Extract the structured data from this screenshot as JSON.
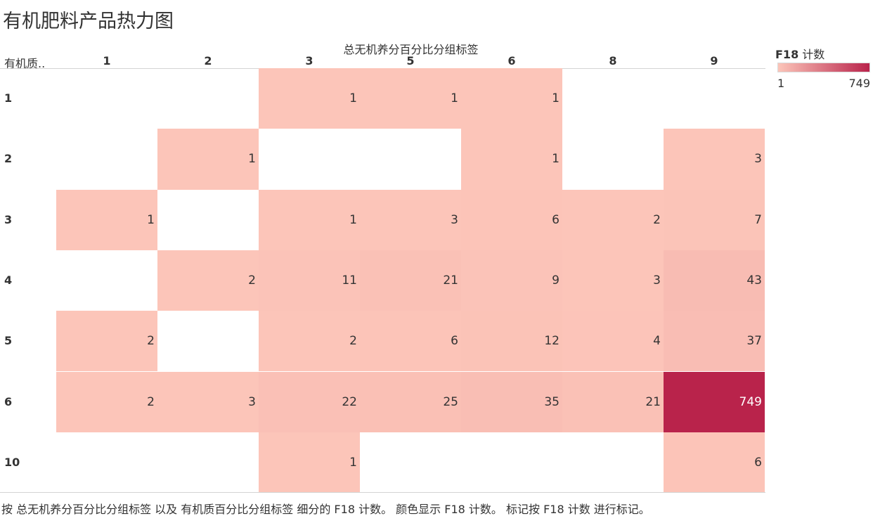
{
  "title": "有机肥料产品热力图",
  "caption": "按 总无机养分百分比分组标签 以及 有机质百分比分组标签 细分的 F18 计数。 颜色显示 F18 计数。 标记按 F18 计数 进行标记。",
  "legend": {
    "title_bold": "F18",
    "title_rest": " 计数",
    "min_label": "1",
    "max_label": "749",
    "color_low": "#fcc5b9",
    "color_high": "#b9234b"
  },
  "chart_data": {
    "type": "heatmap",
    "title": "有机肥料产品热力图",
    "xlabel": "总无机养分百分比分组标签",
    "ylabel": "有机质..",
    "x_categories": [
      "1",
      "2",
      "3",
      "5",
      "6",
      "8",
      "9"
    ],
    "y_categories": [
      "1",
      "2",
      "3",
      "4",
      "5",
      "6",
      "10"
    ],
    "value_label": "F18 计数",
    "color_range": [
      1,
      749
    ],
    "cells": [
      {
        "x": "3",
        "y": "1",
        "value": 1
      },
      {
        "x": "5",
        "y": "1",
        "value": 1
      },
      {
        "x": "6",
        "y": "1",
        "value": 1
      },
      {
        "x": "2",
        "y": "2",
        "value": 1
      },
      {
        "x": "6",
        "y": "2",
        "value": 1
      },
      {
        "x": "9",
        "y": "2",
        "value": 3
      },
      {
        "x": "1",
        "y": "3",
        "value": 1
      },
      {
        "x": "3",
        "y": "3",
        "value": 1
      },
      {
        "x": "5",
        "y": "3",
        "value": 3
      },
      {
        "x": "6",
        "y": "3",
        "value": 6
      },
      {
        "x": "8",
        "y": "3",
        "value": 2
      },
      {
        "x": "9",
        "y": "3",
        "value": 7
      },
      {
        "x": "2",
        "y": "4",
        "value": 2
      },
      {
        "x": "3",
        "y": "4",
        "value": 11
      },
      {
        "x": "5",
        "y": "4",
        "value": 21
      },
      {
        "x": "6",
        "y": "4",
        "value": 9
      },
      {
        "x": "8",
        "y": "4",
        "value": 3
      },
      {
        "x": "9",
        "y": "4",
        "value": 43
      },
      {
        "x": "1",
        "y": "5",
        "value": 2
      },
      {
        "x": "3",
        "y": "5",
        "value": 2
      },
      {
        "x": "5",
        "y": "5",
        "value": 6
      },
      {
        "x": "6",
        "y": "5",
        "value": 12
      },
      {
        "x": "8",
        "y": "5",
        "value": 4
      },
      {
        "x": "9",
        "y": "5",
        "value": 37
      },
      {
        "x": "1",
        "y": "6",
        "value": 2
      },
      {
        "x": "2",
        "y": "6",
        "value": 3
      },
      {
        "x": "3",
        "y": "6",
        "value": 22
      },
      {
        "x": "5",
        "y": "6",
        "value": 25
      },
      {
        "x": "6",
        "y": "6",
        "value": 35
      },
      {
        "x": "8",
        "y": "6",
        "value": 21
      },
      {
        "x": "9",
        "y": "6",
        "value": 749
      },
      {
        "x": "3",
        "y": "10",
        "value": 1
      },
      {
        "x": "9",
        "y": "10",
        "value": 6
      }
    ]
  }
}
